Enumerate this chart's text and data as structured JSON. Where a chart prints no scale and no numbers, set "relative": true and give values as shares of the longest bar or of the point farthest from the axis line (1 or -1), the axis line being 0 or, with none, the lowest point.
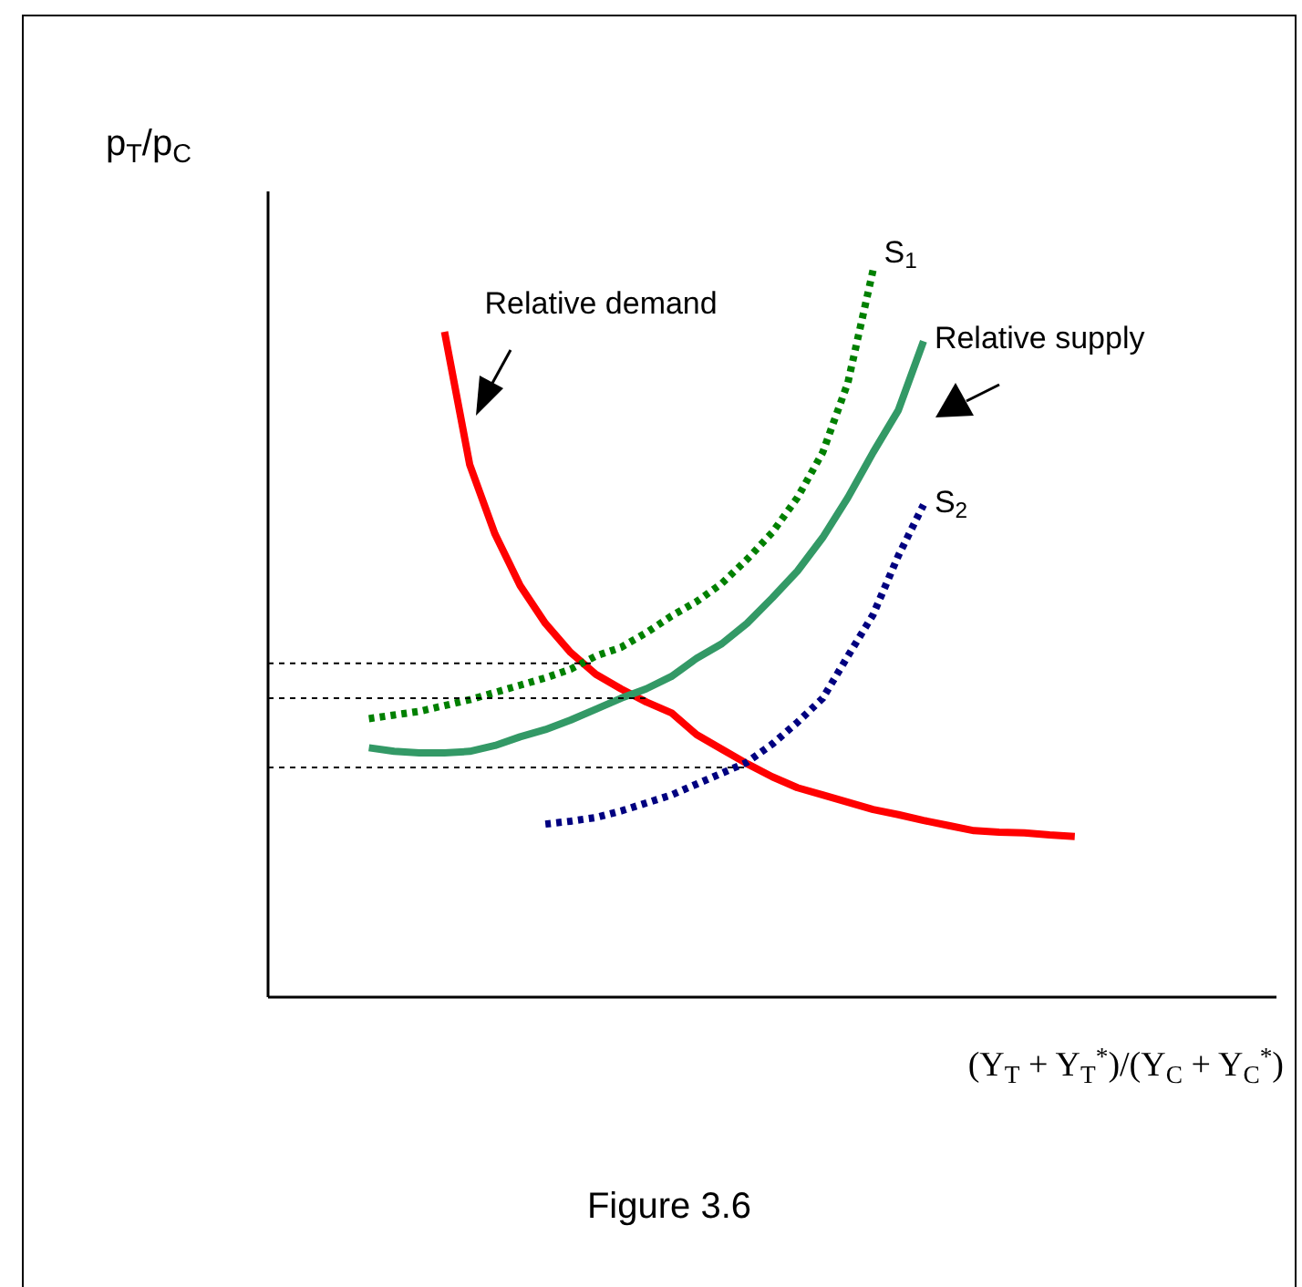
{
  "chart_data": {
    "type": "line",
    "relative": true,
    "marker": "none",
    "ylabel": "p$_{T}$/p$_{C}$",
    "xlabel": "(Y$_{T}$ + Y$_{T}$$^{*}$)/(Y$_{C}$ + Y$_{C}$$^{*}$)",
    "annotations": [
      "Figure 3.6"
    ],
    "categories": [
      null,
      null,
      null,
      null,
      null,
      null,
      null,
      null,
      null,
      null,
      null,
      null,
      null,
      null,
      null,
      null,
      null,
      null,
      null,
      null,
      null,
      null,
      null,
      null,
      null,
      null,
      null,
      null,
      null,
      null,
      null,
      null,
      null,
      null,
      null,
      null,
      null,
      null,
      null,
      null,
      null
    ],
    "series": [
      {
        "name": "Relative demand",
        "color": "#ff0000",
        "values": [
          null,
          null,
          null,
          null,
          null,
          null,
          null,
          0.915,
          0.732,
          0.637,
          0.566,
          0.514,
          0.474,
          0.444,
          0.424,
          0.406,
          0.391,
          0.361,
          0.341,
          0.321,
          0.303,
          0.288,
          0.278,
          0.268,
          0.258,
          0.251,
          0.243,
          0.236,
          0.229,
          0.227,
          0.226,
          0.223,
          0.221,
          null,
          null,
          null,
          null,
          null,
          null,
          null,
          null
        ]
      },
      {
        "name": "S$_{1}$",
        "color": "#008000",
        "line_style": "dotted",
        "values": [
          null,
          null,
          null,
          null,
          0.383,
          0.388,
          0.393,
          0.401,
          0.409,
          0.419,
          0.429,
          0.439,
          0.451,
          0.469,
          0.481,
          0.501,
          0.524,
          0.544,
          0.569,
          0.602,
          0.639,
          0.687,
          0.749,
          0.845,
          1,
          null,
          null,
          null,
          null,
          null,
          null,
          null,
          null,
          null,
          null,
          null,
          null,
          null,
          null,
          null,
          null
        ]
      },
      {
        "name": "Relative supply",
        "color": "#339966",
        "values": [
          null,
          null,
          null,
          null,
          0.343,
          0.338,
          0.336,
          0.336,
          0.338,
          0.346,
          0.358,
          0.368,
          0.381,
          0.396,
          0.411,
          0.424,
          0.441,
          0.466,
          0.486,
          0.514,
          0.549,
          0.586,
          0.632,
          0.687,
          0.749,
          0.807,
          0.902,
          null,
          null,
          null,
          null,
          null,
          null,
          null,
          null,
          null,
          null,
          null,
          null,
          null,
          null
        ]
      },
      {
        "name": "S$_{2}$",
        "color": "#000080",
        "line_style": "dotted",
        "values": [
          null,
          null,
          null,
          null,
          null,
          null,
          null,
          null,
          null,
          null,
          null,
          0.238,
          0.242,
          0.247,
          0.256,
          0.267,
          0.278,
          0.293,
          0.308,
          0.323,
          0.348,
          0.378,
          0.411,
          0.469,
          0.526,
          0.607,
          0.677,
          null,
          null,
          null,
          null,
          null,
          null,
          null,
          null,
          null,
          null,
          null,
          null,
          null,
          null
        ]
      },
      {
        "color": "#000000",
        "line_style": "dotted",
        "values": [
          0.459,
          0.459,
          0.459,
          0.459,
          0.459,
          0.459,
          0.459,
          0.459,
          0.459,
          0.459,
          0.459,
          0.459,
          0.459,
          0.459,
          null,
          null,
          null,
          null,
          null,
          null,
          null,
          null,
          null,
          null,
          null,
          null,
          null,
          null,
          null,
          null,
          null,
          null,
          null,
          null,
          null,
          null,
          null,
          null,
          null,
          null,
          null
        ]
      },
      {
        "color": "#000000",
        "line_style": "dotted",
        "values": [
          0.411,
          0.411,
          0.411,
          0.411,
          0.411,
          0.411,
          0.411,
          0.411,
          0.411,
          0.411,
          0.411,
          0.411,
          0.411,
          0.411,
          0.411,
          0.411,
          null,
          null,
          null,
          null,
          null,
          null,
          null,
          null,
          null,
          null,
          null,
          null,
          null,
          null,
          null,
          null,
          null,
          null,
          null,
          null,
          null,
          null,
          null,
          null,
          null
        ]
      },
      {
        "color": "#000000",
        "line_style": "dotted",
        "values": [
          0.316,
          0.316,
          0.316,
          0.316,
          0.316,
          0.316,
          0.316,
          0.316,
          0.316,
          0.316,
          0.316,
          0.316,
          0.316,
          0.316,
          0.316,
          0.316,
          0.316,
          0.316,
          0.316,
          0.316,
          null,
          null,
          null,
          null,
          null,
          null,
          null,
          null,
          null,
          null,
          null,
          null,
          null,
          null,
          null,
          null,
          null,
          null,
          null,
          null,
          null
        ]
      }
    ]
  }
}
